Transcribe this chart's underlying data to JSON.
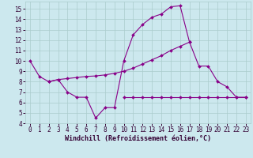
{
  "xlabel": "Windchill (Refroidissement éolien,°C)",
  "bg_color": "#cce8ee",
  "line_color": "#880088",
  "grid_color": "#aacccc",
  "s1_x": [
    0,
    1,
    2,
    3,
    4,
    5,
    6,
    7,
    8,
    9,
    10,
    11,
    12,
    13,
    14,
    15,
    16,
    17,
    18,
    19,
    20,
    21,
    22,
    23
  ],
  "s1_y": [
    10.0,
    8.5,
    8.0,
    8.2,
    7.0,
    6.5,
    6.5,
    4.5,
    5.5,
    5.5,
    10.0,
    12.5,
    13.5,
    14.2,
    14.5,
    15.2,
    15.3,
    11.8,
    9.5,
    9.5,
    8.0,
    7.5,
    6.5,
    6.5
  ],
  "s2_x": [
    2,
    3,
    4,
    5,
    6,
    7,
    8,
    9,
    10,
    11,
    12,
    13,
    14,
    15,
    16,
    17
  ],
  "s2_y": [
    8.0,
    8.2,
    8.3,
    8.4,
    8.5,
    8.55,
    8.65,
    8.8,
    9.0,
    9.3,
    9.7,
    10.1,
    10.5,
    11.0,
    11.4,
    11.8
  ],
  "s3_x": [
    10,
    11,
    12,
    13,
    14,
    15,
    16,
    17,
    18,
    19,
    20,
    21,
    22,
    23
  ],
  "s3_y": [
    6.5,
    6.5,
    6.5,
    6.5,
    6.5,
    6.5,
    6.5,
    6.5,
    6.5,
    6.5,
    6.5,
    6.5,
    6.5,
    6.5
  ],
  "xlim": [
    -0.5,
    23.5
  ],
  "ylim": [
    4,
    15.7
  ],
  "xticks": [
    0,
    1,
    2,
    3,
    4,
    5,
    6,
    7,
    8,
    9,
    10,
    11,
    12,
    13,
    14,
    15,
    16,
    17,
    18,
    19,
    20,
    21,
    22,
    23
  ],
  "yticks": [
    4,
    5,
    6,
    7,
    8,
    9,
    10,
    11,
    12,
    13,
    14,
    15
  ],
  "tick_fontsize": 5.5,
  "xlabel_fontsize": 6.0,
  "marker_size": 2.0,
  "linewidth": 0.8
}
